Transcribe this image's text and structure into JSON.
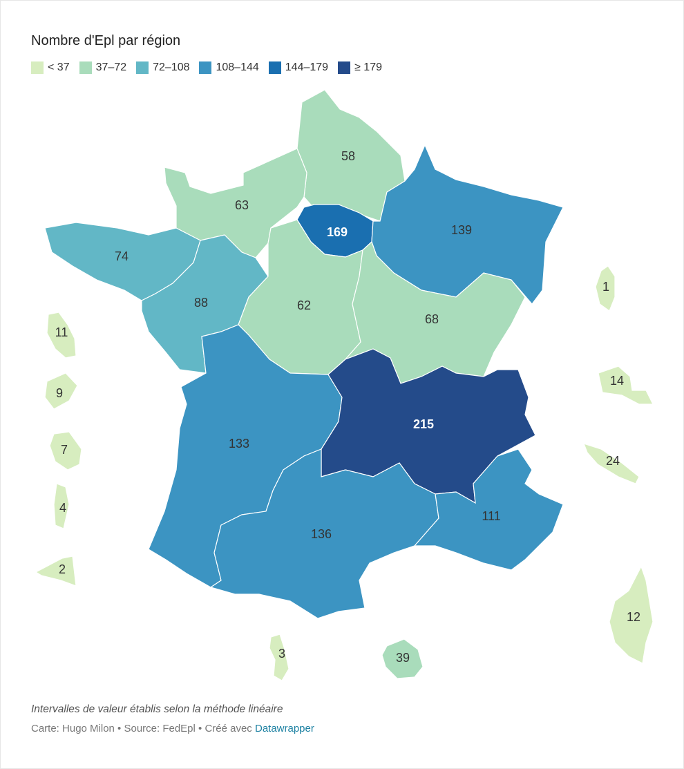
{
  "title": "Nombre d'Epl par région",
  "legend": [
    {
      "label": "< 37",
      "color": "#d7edbf"
    },
    {
      "label": "37–72",
      "color": "#a9dcbb"
    },
    {
      "label": "72–108",
      "color": "#62b7c6"
    },
    {
      "label": "108–144",
      "color": "#3c94c2"
    },
    {
      "label": "144–179",
      "color": "#1a6fb0"
    },
    {
      "label": "≥ 179",
      "color": "#244b8a"
    }
  ],
  "regions": [
    {
      "id": "hauts-de-france",
      "value": "58"
    },
    {
      "id": "normandie",
      "value": "63"
    },
    {
      "id": "ile-de-france",
      "value": "169"
    },
    {
      "id": "grand-est",
      "value": "139"
    },
    {
      "id": "bretagne",
      "value": "74"
    },
    {
      "id": "pays-de-la-loire",
      "value": "88"
    },
    {
      "id": "centre-val-de-loire",
      "value": "62"
    },
    {
      "id": "bourgogne-franche-comte",
      "value": "68"
    },
    {
      "id": "nouvelle-aquitaine",
      "value": "133"
    },
    {
      "id": "auvergne-rhone-alpes",
      "value": "215"
    },
    {
      "id": "occitanie",
      "value": "136"
    },
    {
      "id": "provence-alpes-cote-d-azur",
      "value": "111"
    },
    {
      "id": "corse",
      "value": "12"
    }
  ],
  "overseas": [
    {
      "id": "territoire-west-1",
      "value": "11"
    },
    {
      "id": "territoire-west-2",
      "value": "9"
    },
    {
      "id": "territoire-west-3",
      "value": "7"
    },
    {
      "id": "territoire-west-4",
      "value": "4"
    },
    {
      "id": "territoire-west-5",
      "value": "2"
    },
    {
      "id": "territoire-east-1",
      "value": "1"
    },
    {
      "id": "territoire-east-2",
      "value": "14"
    },
    {
      "id": "territoire-east-3",
      "value": "24"
    },
    {
      "id": "mayotte",
      "value": "3"
    },
    {
      "id": "la-reunion",
      "value": "39"
    }
  ],
  "notes": "Intervalles de valeur établis selon la méthode linéaire",
  "source": {
    "prefix": "Carte: Hugo Milon • Source: FedEpl • Créé avec ",
    "link": "Datawrapper"
  }
}
